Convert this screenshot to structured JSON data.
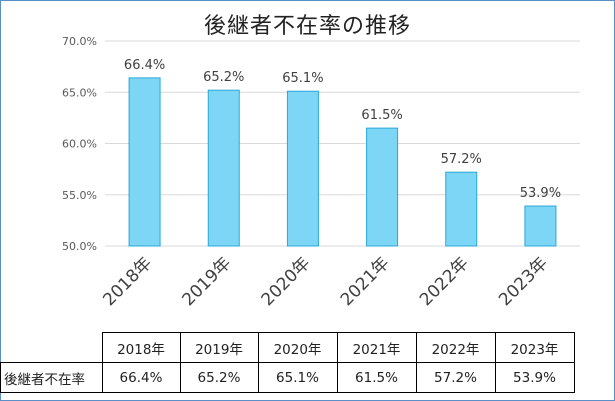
{
  "chart_data": {
    "type": "bar",
    "title": "後継者不在率の推移",
    "categories": [
      "2018年",
      "2019年",
      "2020年",
      "2021年",
      "2022年",
      "2023年"
    ],
    "values": [
      66.4,
      65.2,
      65.1,
      61.5,
      57.2,
      53.9
    ],
    "data_labels": [
      "66.4%",
      "65.2%",
      "65.1%",
      "61.5%",
      "57.2%",
      "53.9%"
    ],
    "y_ticks": [
      "50.0%",
      "55.0%",
      "60.0%",
      "65.0%",
      "70.0%"
    ],
    "ylim": [
      50,
      70
    ],
    "grid": true,
    "bar_color": "#7dd6f5",
    "bar_border_color": "#2aa8d8"
  },
  "table": {
    "row_label": "後継者不在率",
    "headers": [
      "2018年",
      "2019年",
      "2020年",
      "2021年",
      "2022年",
      "2023年"
    ],
    "values": [
      "66.4%",
      "65.2%",
      "65.1%",
      "61.5%",
      "57.2%",
      "53.9%"
    ]
  }
}
